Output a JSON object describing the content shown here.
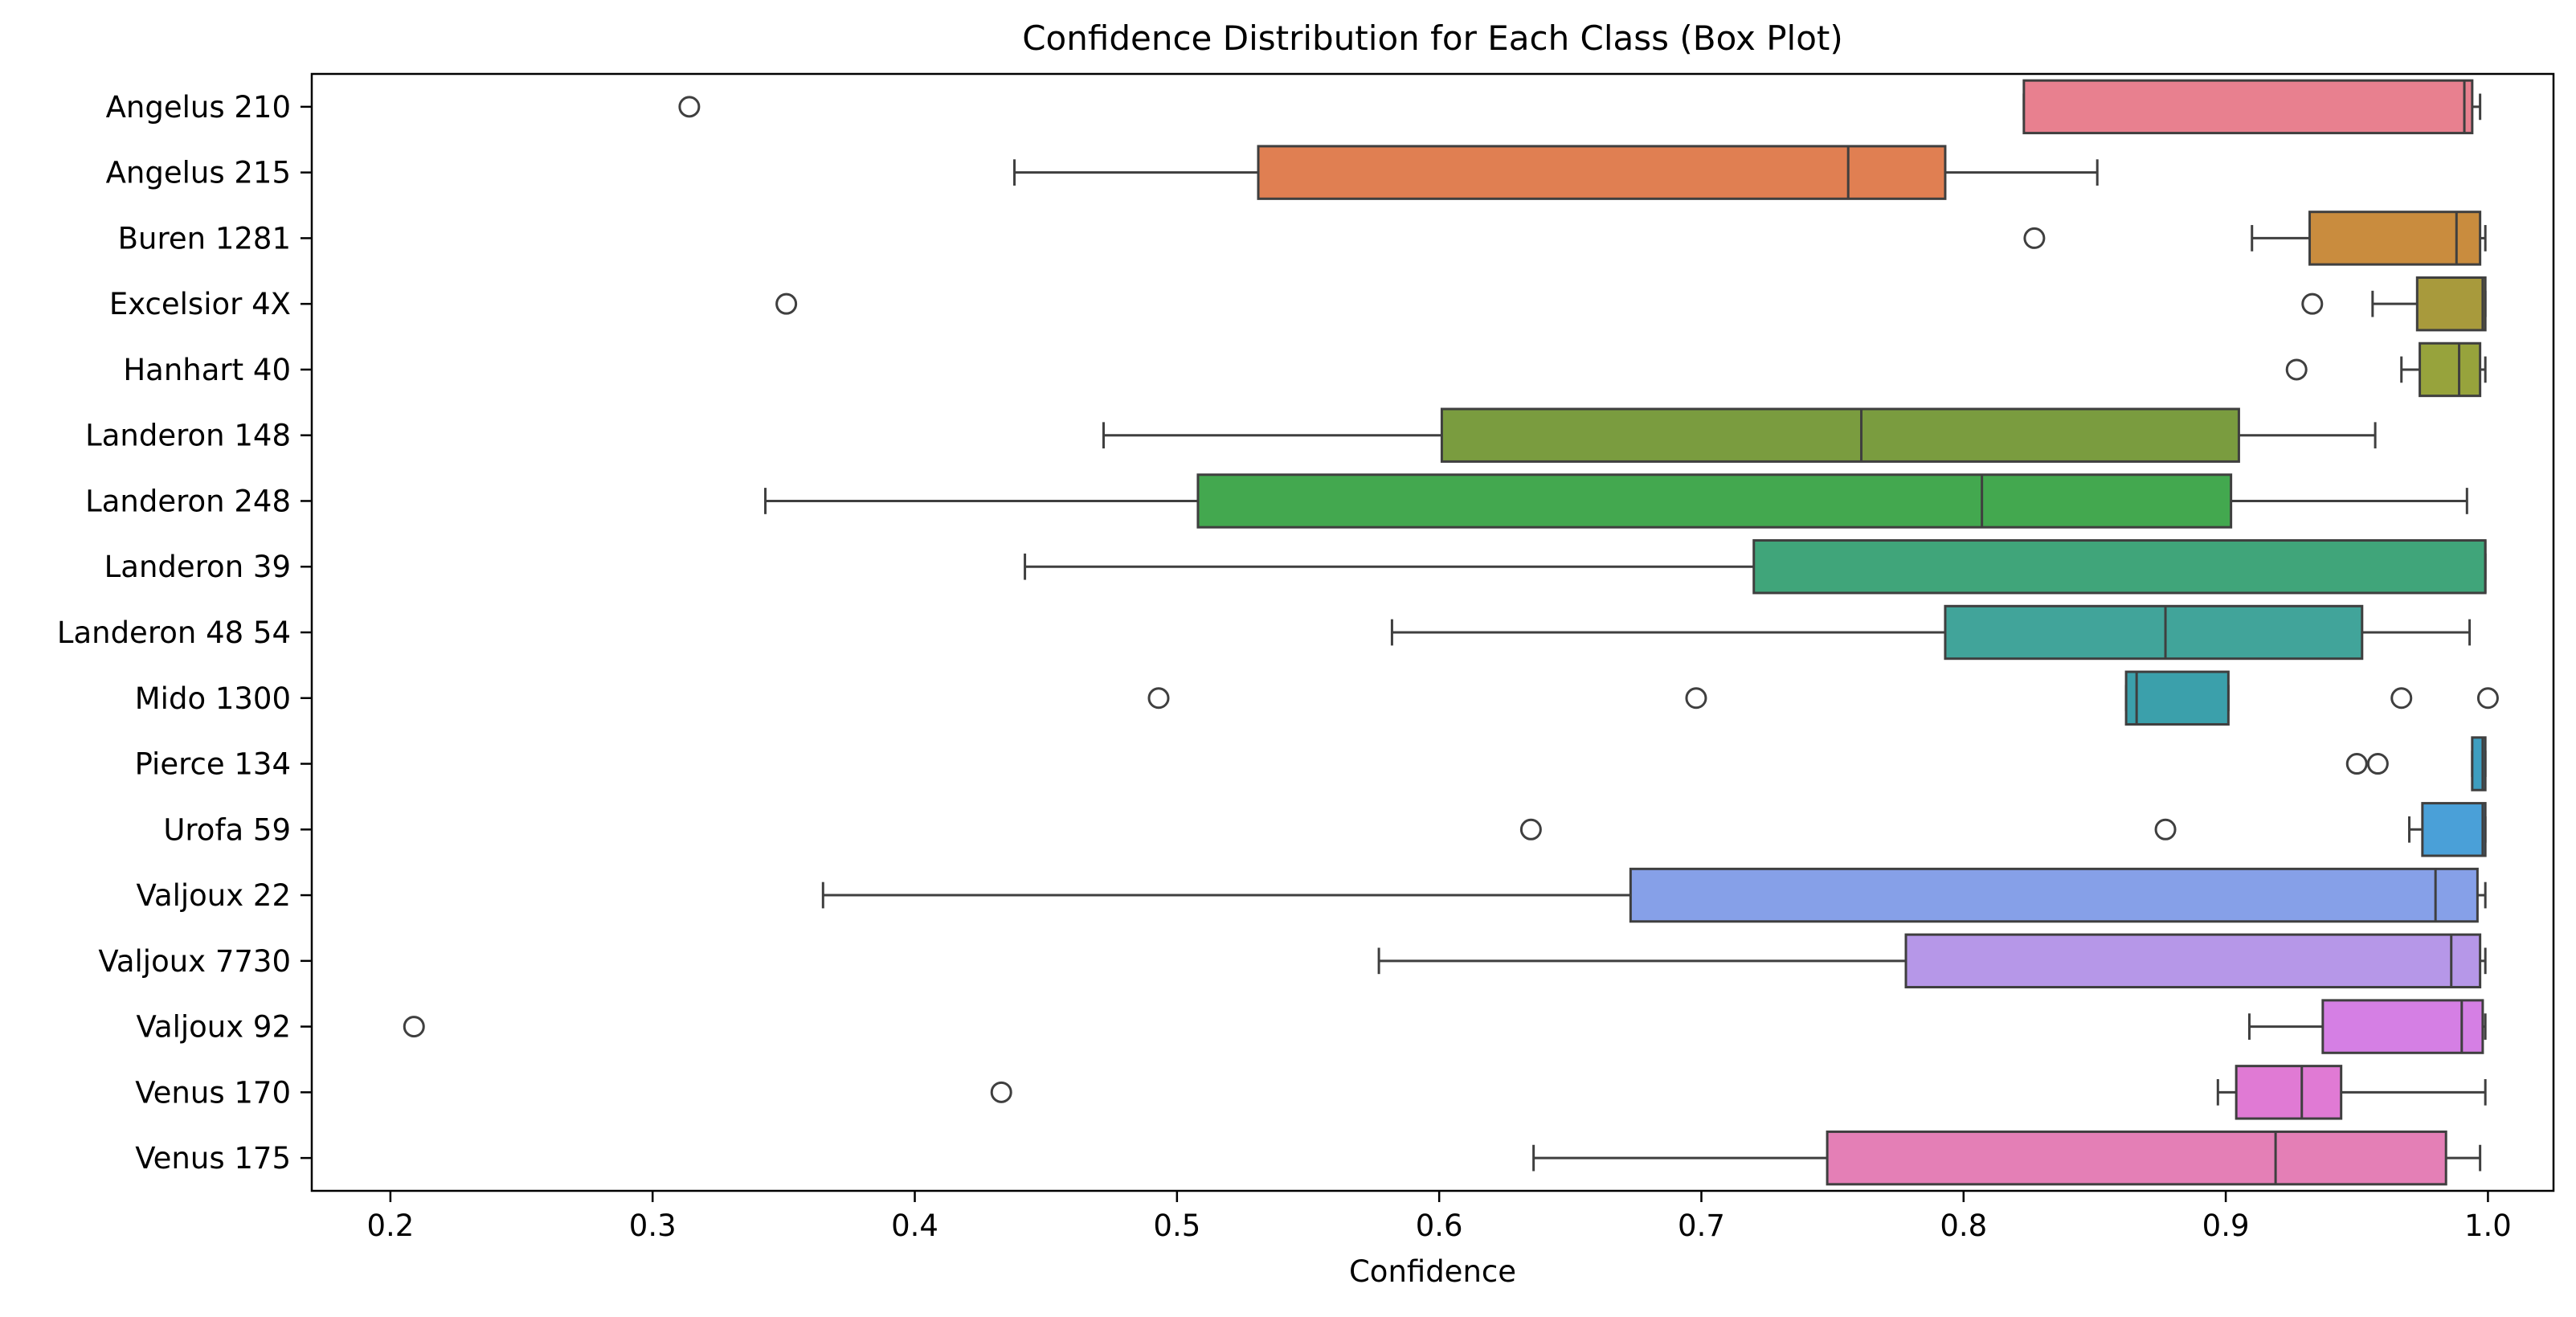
{
  "chart_data": {
    "type": "box",
    "orientation": "horizontal",
    "title": "Confidence Distribution for Each Class (Box Plot)",
    "xlabel": "Confidence",
    "ylabel": "",
    "xlim": [
      0.17,
      1.025
    ],
    "xticks": [
      0.2,
      0.3,
      0.4,
      0.5,
      0.6,
      0.7,
      0.8,
      0.9,
      1.0
    ],
    "xtick_labels": [
      "0.2",
      "0.3",
      "0.4",
      "0.5",
      "0.6",
      "0.7",
      "0.8",
      "0.9",
      "1.0"
    ],
    "grid": false,
    "legend": "none",
    "categories": [
      {
        "label": "Angelus 210",
        "color": "#e8808f",
        "whisker_low": 0.823,
        "q1": 0.823,
        "median": 0.991,
        "q3": 0.994,
        "whisker_high": 0.997,
        "outliers": [
          0.314
        ]
      },
      {
        "label": "Angelus 215",
        "color": "#e07f52",
        "whisker_low": 0.438,
        "q1": 0.531,
        "median": 0.756,
        "q3": 0.793,
        "whisker_high": 0.851,
        "outliers": []
      },
      {
        "label": "Buren 1281",
        "color": "#c98c3e",
        "whisker_low": 0.91,
        "q1": 0.932,
        "median": 0.988,
        "q3": 0.997,
        "whisker_high": 0.999,
        "outliers": [
          0.827
        ]
      },
      {
        "label": "Excelsior 4X",
        "color": "#a89a3c",
        "whisker_low": 0.956,
        "q1": 0.973,
        "median": 0.998,
        "q3": 0.999,
        "whisker_high": 0.999,
        "outliers": [
          0.351,
          0.933
        ]
      },
      {
        "label": "Hanhart 40",
        "color": "#97a33c",
        "whisker_low": 0.967,
        "q1": 0.974,
        "median": 0.989,
        "q3": 0.997,
        "whisker_high": 0.999,
        "outliers": [
          0.927
        ]
      },
      {
        "label": "Landeron 148",
        "color": "#7a9c3f",
        "whisker_low": 0.472,
        "q1": 0.601,
        "median": 0.761,
        "q3": 0.905,
        "whisker_high": 0.957,
        "outliers": []
      },
      {
        "label": "Landeron 248",
        "color": "#43a84f",
        "whisker_low": 0.343,
        "q1": 0.508,
        "median": 0.807,
        "q3": 0.902,
        "whisker_high": 0.992,
        "outliers": []
      },
      {
        "label": "Landeron 39",
        "color": "#40a57a",
        "whisker_low": 0.442,
        "q1": 0.72,
        "median": 0.999,
        "q3": 0.999,
        "whisker_high": 0.999,
        "outliers": []
      },
      {
        "label": "Landeron 48 54",
        "color": "#41a49a",
        "whisker_low": 0.582,
        "q1": 0.793,
        "median": 0.877,
        "q3": 0.952,
        "whisker_high": 0.993,
        "outliers": []
      },
      {
        "label": "Mido 1300",
        "color": "#3ba0ab",
        "whisker_low": 0.862,
        "q1": 0.862,
        "median": 0.866,
        "q3": 0.901,
        "whisker_high": 0.901,
        "outliers": [
          0.493,
          0.698,
          0.967,
          1.0
        ]
      },
      {
        "label": "Pierce 134",
        "color": "#3e9ec0",
        "whisker_low": 0.994,
        "q1": 0.994,
        "median": 0.998,
        "q3": 0.999,
        "whisker_high": 0.999,
        "outliers": [
          0.95,
          0.958
        ]
      },
      {
        "label": "Urofa 59",
        "color": "#4aa0d8",
        "whisker_low": 0.97,
        "q1": 0.975,
        "median": 0.998,
        "q3": 0.999,
        "whisker_high": 0.999,
        "outliers": [
          0.635,
          0.877
        ]
      },
      {
        "label": "Valjoux 22",
        "color": "#86a0e8",
        "whisker_low": 0.365,
        "q1": 0.673,
        "median": 0.98,
        "q3": 0.996,
        "whisker_high": 0.999,
        "outliers": []
      },
      {
        "label": "Valjoux 7730",
        "color": "#b697e8",
        "whisker_low": 0.577,
        "q1": 0.778,
        "median": 0.986,
        "q3": 0.997,
        "whisker_high": 0.999,
        "outliers": []
      },
      {
        "label": "Valjoux 92",
        "color": "#d57fe4",
        "whisker_low": 0.909,
        "q1": 0.937,
        "median": 0.99,
        "q3": 0.998,
        "whisker_high": 0.999,
        "outliers": [
          0.209
        ]
      },
      {
        "label": "Venus 170",
        "color": "#e07ad4",
        "whisker_low": 0.897,
        "q1": 0.904,
        "median": 0.929,
        "q3": 0.944,
        "whisker_high": 0.999,
        "outliers": [
          0.433
        ]
      },
      {
        "label": "Venus 175",
        "color": "#e47fb6",
        "whisker_low": 0.636,
        "q1": 0.748,
        "median": 0.919,
        "q3": 0.984,
        "whisker_high": 0.997,
        "outliers": []
      }
    ]
  }
}
